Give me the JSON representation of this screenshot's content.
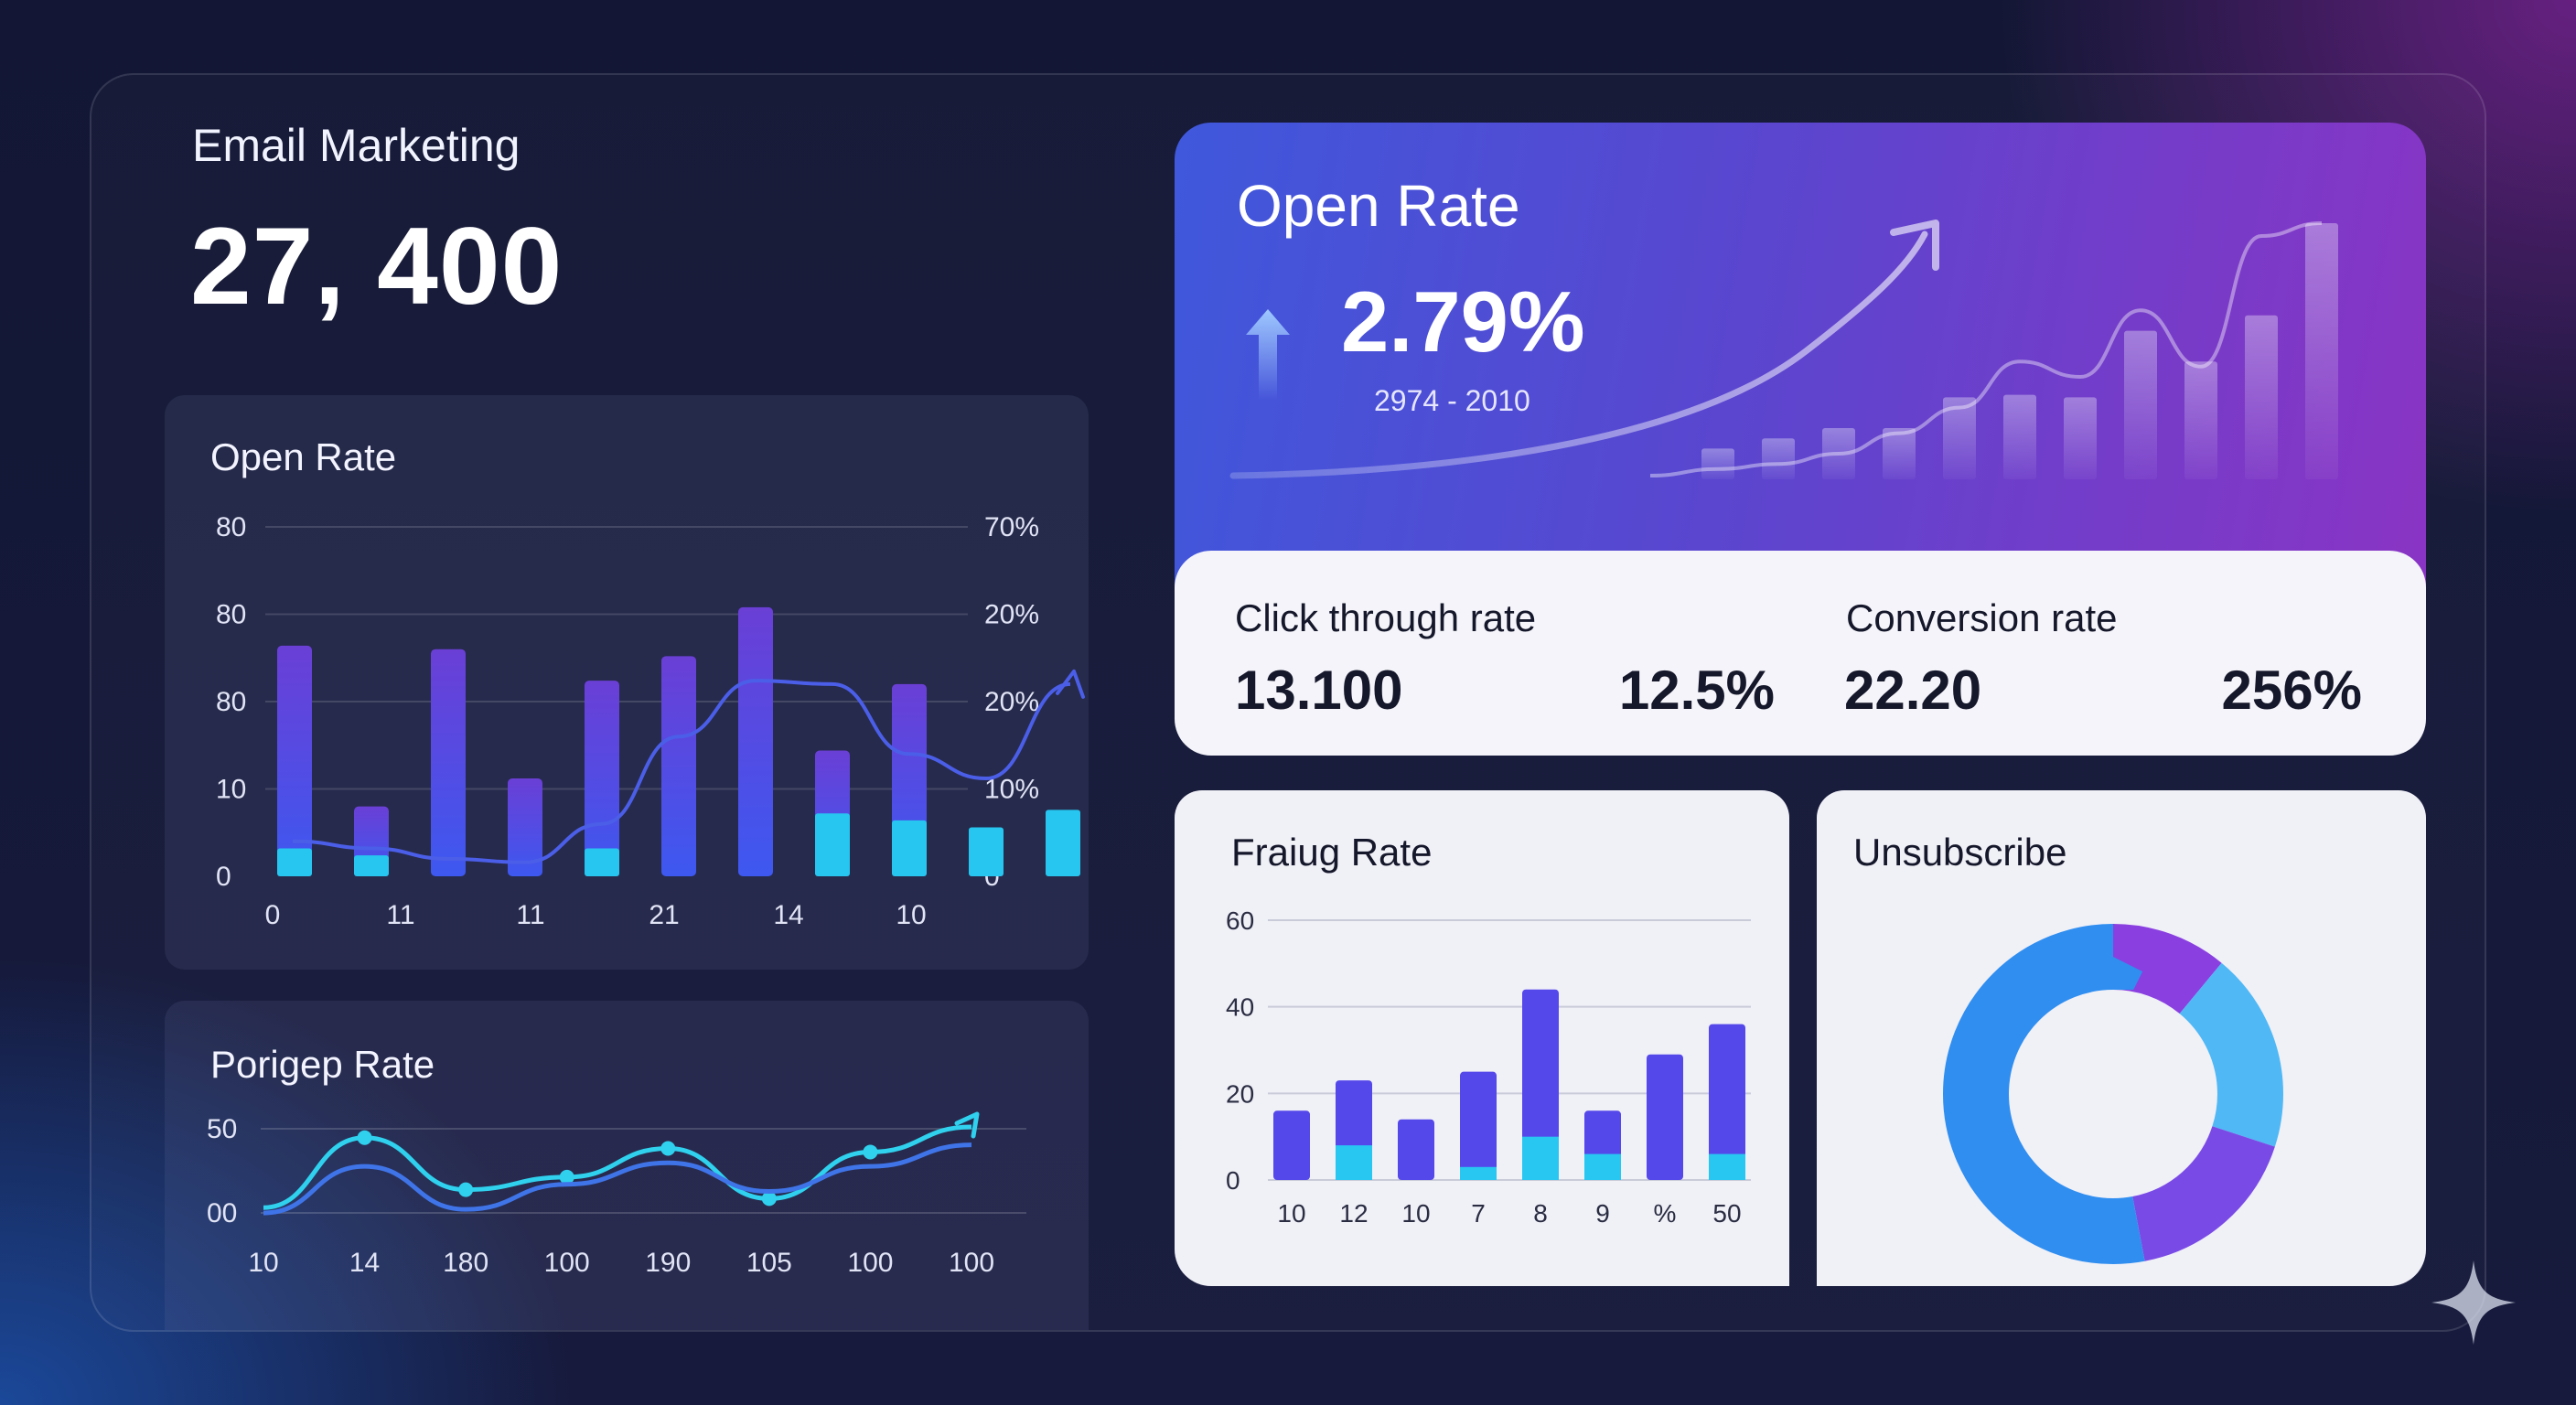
{
  "header": {
    "title": "Email Marketing",
    "total": "27, 400"
  },
  "open_rate_panel": {
    "title": "Open Rate",
    "chart_data": {
      "type": "bar",
      "title": "Open Rate",
      "left_ticks": [
        "80",
        "80",
        "80",
        "10",
        "0"
      ],
      "right_ticks": [
        "70%",
        "20%",
        "20%",
        "10%",
        "0"
      ],
      "x_tick_labels": [
        "0",
        "11",
        "11",
        "21",
        "14",
        "10"
      ],
      "series": [
        {
          "name": "primary",
          "values": [
            66,
            20,
            65,
            28,
            56,
            63,
            77,
            36,
            55,
            0,
            0
          ]
        },
        {
          "name": "secondary",
          "values": [
            8,
            6,
            0,
            0,
            8,
            0,
            0,
            18,
            16,
            14,
            19
          ]
        }
      ],
      "trend_line": [
        10,
        8,
        5,
        4,
        15,
        40,
        56,
        55,
        35,
        28,
        55
      ],
      "ylim": [
        0,
        100
      ]
    }
  },
  "porigep_panel": {
    "title": "Porigep Rate",
    "chart_data": {
      "type": "line",
      "title": "Porigep Rate",
      "y_ticks": [
        "50",
        "00"
      ],
      "x_tick_labels": [
        "10",
        "14",
        "180",
        "100",
        "190",
        "105",
        "100",
        "100"
      ],
      "series": [
        {
          "name": "line-a",
          "values": [
            5,
            44,
            15,
            22,
            38,
            10,
            36,
            50
          ]
        },
        {
          "name": "line-b",
          "values": [
            2,
            28,
            4,
            18,
            30,
            14,
            28,
            40
          ]
        }
      ]
    }
  },
  "hero": {
    "title": "Open Rate",
    "value": "2.79%",
    "range": "2974 - 2010",
    "chart_data": {
      "type": "bar",
      "values": [
        12,
        16,
        20,
        20,
        32,
        33,
        32,
        58,
        46,
        64,
        100
      ],
      "trend_line": [
        4,
        6,
        10,
        18,
        28,
        46,
        40,
        66,
        44,
        95,
        100
      ]
    }
  },
  "kpis": {
    "click_label": "Click through rate",
    "click_value": "13.100",
    "click_pct": "12.5%",
    "conv_label": "Conversion rate",
    "conv_value": "22.20",
    "conv_pct": "256%"
  },
  "fraud_panel": {
    "title": "Fraiug Rate",
    "chart_data": {
      "type": "bar",
      "y_ticks": [
        "60",
        "40",
        "20",
        "0"
      ],
      "ylim": [
        0,
        60
      ],
      "categories": [
        "10",
        "12",
        "10",
        "7",
        "8",
        "9",
        "%",
        "50"
      ],
      "series": [
        {
          "name": "total",
          "values": [
            16,
            23,
            14,
            25,
            44,
            16,
            29,
            36
          ]
        },
        {
          "name": "highlight",
          "values": [
            0,
            8,
            0,
            3,
            10,
            6,
            0,
            6
          ]
        }
      ]
    }
  },
  "unsubscribe_panel": {
    "title": "Unsubscribe",
    "chart_data": {
      "type": "pie",
      "slices": [
        {
          "name": "purple-top",
          "value": 11,
          "color": "#8a3fe0"
        },
        {
          "name": "light-blue",
          "value": 19,
          "color": "#4fb8f5"
        },
        {
          "name": "violet",
          "value": 17,
          "color": "#7a4ae6"
        },
        {
          "name": "blue",
          "value": 53,
          "color": "#2f8ef0"
        }
      ]
    }
  },
  "colors": {
    "bar_primary": "#5b4ef0",
    "bar_cyan": "#27c4f2",
    "hero_gradient_start": "#3f58dc",
    "hero_gradient_end": "#8a34c4"
  }
}
